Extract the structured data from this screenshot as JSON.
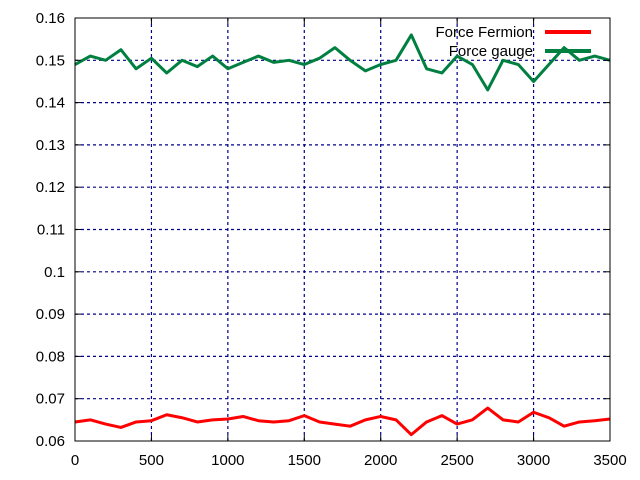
{
  "chart_data": {
    "type": "line",
    "title": "",
    "xlabel": "",
    "ylabel": "",
    "xlim": [
      0,
      3500
    ],
    "ylim": [
      0.06,
      0.16
    ],
    "x_ticks": [
      0,
      500,
      1000,
      1500,
      2000,
      2500,
      3000,
      3500
    ],
    "x_tick_labels": [
      "0",
      "500",
      "1000",
      "1500",
      "2000",
      "2500",
      "3000",
      "3500"
    ],
    "y_ticks": [
      0.06,
      0.07,
      0.08,
      0.09,
      0.1,
      0.11,
      0.12,
      0.13,
      0.14,
      0.15,
      0.16
    ],
    "y_tick_labels": [
      "0.06",
      "0.07",
      "0.08",
      "0.09",
      "0.1",
      "0.11",
      "0.12",
      "0.13",
      "0.14",
      "0.15",
      "0.16"
    ],
    "grid": true,
    "legend_position": "top-right",
    "series": [
      {
        "name": "Force Fermion",
        "color": "#ff0000",
        "x": [
          0,
          100,
          200,
          300,
          400,
          500,
          600,
          700,
          800,
          900,
          1000,
          1100,
          1200,
          1300,
          1400,
          1500,
          1600,
          1700,
          1800,
          1900,
          2000,
          2100,
          2200,
          2300,
          2400,
          2500,
          2600,
          2700,
          2800,
          2900,
          3000,
          3100,
          3200,
          3300,
          3400,
          3500
        ],
        "y": [
          0.0645,
          0.065,
          0.064,
          0.0632,
          0.0645,
          0.0648,
          0.0662,
          0.0655,
          0.0645,
          0.065,
          0.0652,
          0.0658,
          0.0648,
          0.0645,
          0.0648,
          0.066,
          0.0645,
          0.064,
          0.0635,
          0.065,
          0.0658,
          0.065,
          0.0615,
          0.0645,
          0.066,
          0.064,
          0.065,
          0.0678,
          0.065,
          0.0645,
          0.0668,
          0.0655,
          0.0635,
          0.0645,
          0.0648,
          0.0652
        ]
      },
      {
        "name": "Force gauge",
        "color": "#008040",
        "x": [
          0,
          100,
          200,
          300,
          400,
          500,
          600,
          700,
          800,
          900,
          1000,
          1100,
          1200,
          1300,
          1400,
          1500,
          1600,
          1700,
          1800,
          1900,
          2000,
          2100,
          2200,
          2300,
          2400,
          2500,
          2600,
          2700,
          2800,
          2900,
          3000,
          3100,
          3200,
          3300,
          3400,
          3500
        ],
        "y": [
          0.149,
          0.151,
          0.15,
          0.1525,
          0.148,
          0.1505,
          0.147,
          0.15,
          0.1485,
          0.151,
          0.148,
          0.1495,
          0.151,
          0.1495,
          0.15,
          0.149,
          0.1505,
          0.153,
          0.15,
          0.1475,
          0.149,
          0.15,
          0.156,
          0.148,
          0.147,
          0.151,
          0.149,
          0.143,
          0.15,
          0.149,
          0.145,
          0.149,
          0.153,
          0.15,
          0.151,
          0.15
        ]
      }
    ]
  }
}
